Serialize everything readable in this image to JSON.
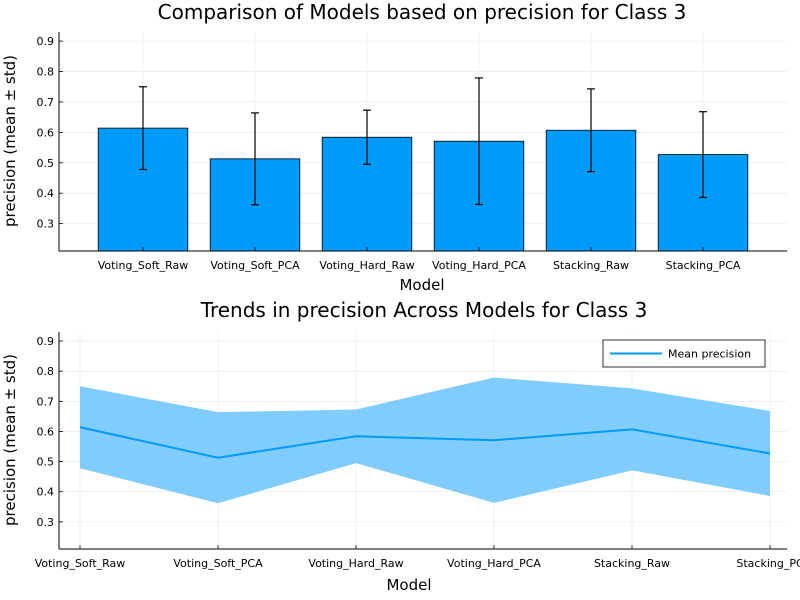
{
  "chart_data": [
    {
      "type": "bar",
      "title": "Comparison of Models based on precision for Class 3",
      "xlabel": "Model",
      "ylabel": "precision (mean ± std)",
      "categories": [
        "Voting_Soft_Raw",
        "Voting_Soft_PCA",
        "Voting_Hard_Raw",
        "Voting_Hard_PCA",
        "Stacking_Raw",
        "Stacking_PCA"
      ],
      "values": [
        0.614,
        0.513,
        0.584,
        0.571,
        0.607,
        0.527
      ],
      "errors": [
        0.136,
        0.151,
        0.089,
        0.208,
        0.136,
        0.141
      ],
      "ylim": [
        0.21,
        0.93
      ],
      "yticks": [
        0.3,
        0.4,
        0.5,
        0.6,
        0.7,
        0.8,
        0.9
      ],
      "ytick_labels": [
        "0.3",
        "0.4",
        "0.5",
        "0.6",
        "0.7",
        "0.8",
        "0.9"
      ],
      "bar_color": "#009AF9",
      "grid": true
    },
    {
      "type": "line",
      "title": "Trends in precision Across Models for Class 3",
      "xlabel": "Model",
      "ylabel": "precision (mean ± std)",
      "categories": [
        "Voting_Soft_Raw",
        "Voting_Soft_PCA",
        "Voting_Hard_Raw",
        "Voting_Hard_PCA",
        "Stacking_Raw",
        "Stacking_PCA"
      ],
      "xtick_labels": [
        "Voting_Soft_Raw",
        "Voting_Soft_PCA",
        "Voting_Hard_Raw",
        "Voting_Hard_PCA",
        "Stacking_Raw",
        "Stacking_PC"
      ],
      "series": [
        {
          "name": "Mean precision",
          "values": [
            0.614,
            0.513,
            0.584,
            0.571,
            0.607,
            0.527
          ]
        }
      ],
      "band_lower": [
        0.478,
        0.362,
        0.495,
        0.363,
        0.471,
        0.386
      ],
      "band_upper": [
        0.75,
        0.664,
        0.673,
        0.779,
        0.743,
        0.668
      ],
      "ylim": [
        0.21,
        0.93
      ],
      "yticks": [
        0.3,
        0.4,
        0.5,
        0.6,
        0.7,
        0.8,
        0.9
      ],
      "ytick_labels": [
        "0.3",
        "0.4",
        "0.5",
        "0.6",
        "0.7",
        "0.8",
        "0.9"
      ],
      "legend": "top-right",
      "line_color": "#009AF9",
      "band_color": "#80CCFC",
      "grid": true
    }
  ]
}
